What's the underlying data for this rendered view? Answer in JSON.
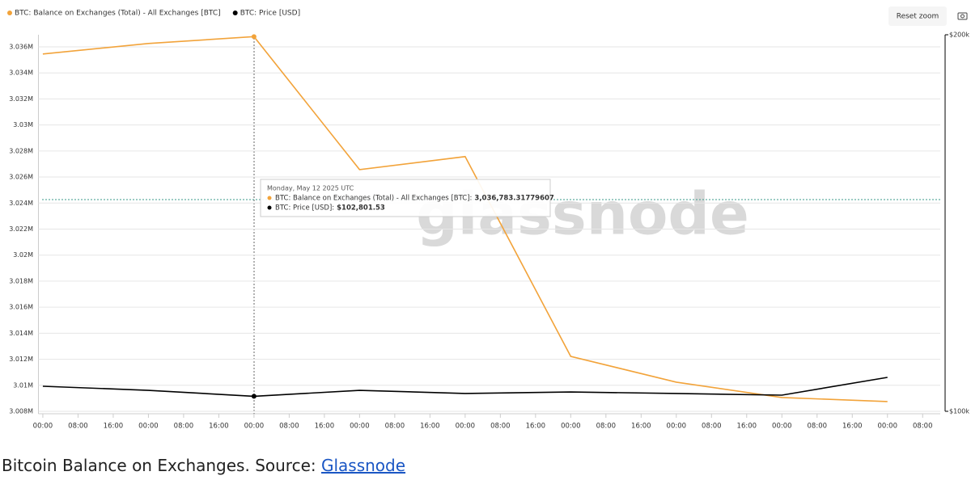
{
  "chart_data": {
    "type": "line",
    "series": [
      {
        "name": "BTC: Balance on Exchanges (Total) - All Exchanges [BTC]",
        "color": "#f2a33a",
        "values": [
          3035450,
          3036260,
          3036783.31779607,
          3026570,
          3027570,
          3012220,
          3010240,
          3009060,
          3008750
        ]
      },
      {
        "name": "BTC: Price [USD]",
        "color": "#000000",
        "axis": "y2",
        "values": [
          104720,
          103940,
          102801.53,
          103940,
          103330,
          103630,
          103330,
          103020,
          106450
        ]
      }
    ],
    "x": [
      0,
      24,
      48,
      72,
      96,
      120,
      144,
      168,
      192
    ],
    "xlim": [
      -1,
      204
    ],
    "xticks": [
      {
        "value": 0,
        "label": "00:00"
      },
      {
        "value": 8,
        "label": "08:00"
      },
      {
        "value": 16,
        "label": "16:00"
      },
      {
        "value": 24,
        "label": "00:00"
      },
      {
        "value": 32,
        "label": "08:00"
      },
      {
        "value": 40,
        "label": "16:00"
      },
      {
        "value": 48,
        "label": "00:00"
      },
      {
        "value": 56,
        "label": "08:00"
      },
      {
        "value": 64,
        "label": "16:00"
      },
      {
        "value": 72,
        "label": "00:00"
      },
      {
        "value": 80,
        "label": "08:00"
      },
      {
        "value": 88,
        "label": "16:00"
      },
      {
        "value": 96,
        "label": "00:00"
      },
      {
        "value": 104,
        "label": "08:00"
      },
      {
        "value": 112,
        "label": "16:00"
      },
      {
        "value": 120,
        "label": "00:00"
      },
      {
        "value": 128,
        "label": "08:00"
      },
      {
        "value": 136,
        "label": "16:00"
      },
      {
        "value": 144,
        "label": "00:00"
      },
      {
        "value": 152,
        "label": "08:00"
      },
      {
        "value": 160,
        "label": "16:00"
      },
      {
        "value": 168,
        "label": "00:00"
      },
      {
        "value": 176,
        "label": "08:00"
      },
      {
        "value": 184,
        "label": "16:00"
      },
      {
        "value": 192,
        "label": "00:00"
      },
      {
        "value": 200,
        "label": "08:00"
      }
    ],
    "ylim": [
      3008000,
      3036930
    ],
    "yticks": [
      {
        "value": 3008000,
        "label": "3.008M"
      },
      {
        "value": 3010000,
        "label": "3.01M"
      },
      {
        "value": 3012000,
        "label": "3.012M"
      },
      {
        "value": 3014000,
        "label": "3.014M"
      },
      {
        "value": 3016000,
        "label": "3.016M"
      },
      {
        "value": 3018000,
        "label": "3.018M"
      },
      {
        "value": 3020000,
        "label": "3.02M"
      },
      {
        "value": 3022000,
        "label": "3.022M"
      },
      {
        "value": 3024000,
        "label": "3.024M"
      },
      {
        "value": 3026000,
        "label": "3.026M"
      },
      {
        "value": 3028000,
        "label": "3.028M"
      },
      {
        "value": 3030000,
        "label": "3.03M"
      },
      {
        "value": 3032000,
        "label": "3.032M"
      },
      {
        "value": 3034000,
        "label": "3.034M"
      },
      {
        "value": 3036000,
        "label": "3.036M"
      }
    ],
    "y2lim": [
      100000,
      200000
    ],
    "y2ticks": [
      {
        "value": 100000,
        "label": "$100k"
      },
      {
        "value": 200000,
        "label": "$200k"
      }
    ],
    "y2log": true,
    "grid": true,
    "legend": "top-left",
    "tooltip": {
      "title": "Monday, May 12 2025 UTC",
      "items": [
        {
          "label": "BTC: Balance on Exchanges (Total) - All Exchanges [BTC]:",
          "value": "3,036,783.31779607"
        },
        {
          "label": "BTC: Price [USD]:",
          "value": "$102,801.53"
        }
      ]
    }
  },
  "reset_zoom": "Reset zoom",
  "watermark": "glassnode",
  "caption": {
    "text": "Bitcoin Balance on Exchanges. Source:",
    "link": "Glassnode"
  }
}
